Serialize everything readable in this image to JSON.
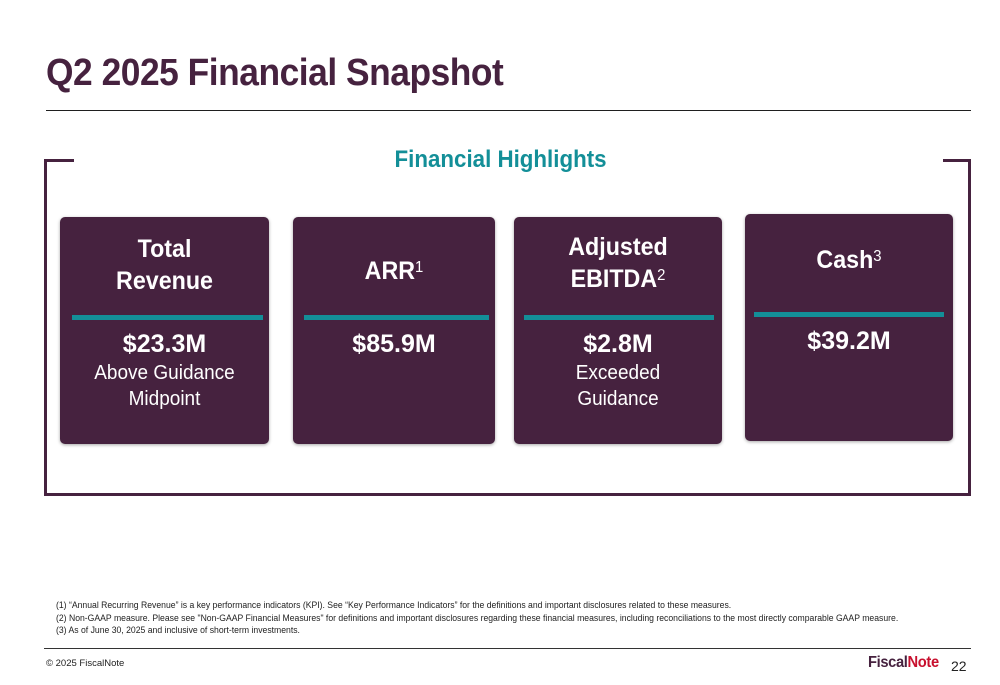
{
  "header": {
    "title": "Q2 2025 Financial Snapshot"
  },
  "highlights": {
    "title": "Financial Highlights",
    "cards": [
      {
        "label_lines": [
          "Total",
          "Revenue"
        ],
        "footnote_ref": "",
        "value": "$23.3M",
        "note": "Above Guidance\nMidpoint"
      },
      {
        "label_lines": [
          "ARR"
        ],
        "footnote_ref": "1",
        "value": "$85.9M",
        "note": ""
      },
      {
        "label_lines": [
          "Adjusted",
          "EBITDA"
        ],
        "footnote_ref": "2",
        "value": "$2.8M",
        "note": "Exceeded\nGuidance"
      },
      {
        "label_lines": [
          "Cash"
        ],
        "footnote_ref": "3",
        "value": "$39.2M",
        "note": ""
      }
    ]
  },
  "footnotes": [
    "(1) “Annual Recurring Revenue” is a key performance indicators (KPI).  See “Key Performance Indicators” for the definitions and important disclosures related to these measures.",
    "(2) Non-GAAP measure.  Please see \"Non-GAAP Financial Measures\" for definitions and important disclosures regarding these financial measures, including reconciliations to the most directly comparable GAAP measure.",
    "(3) As of June 30, 2025 and inclusive of short-term investments."
  ],
  "footer": {
    "copyright": "© 2025 FiscalNote",
    "logo_part1": "Fiscal",
    "logo_part2": "Note",
    "page_number": "22"
  }
}
